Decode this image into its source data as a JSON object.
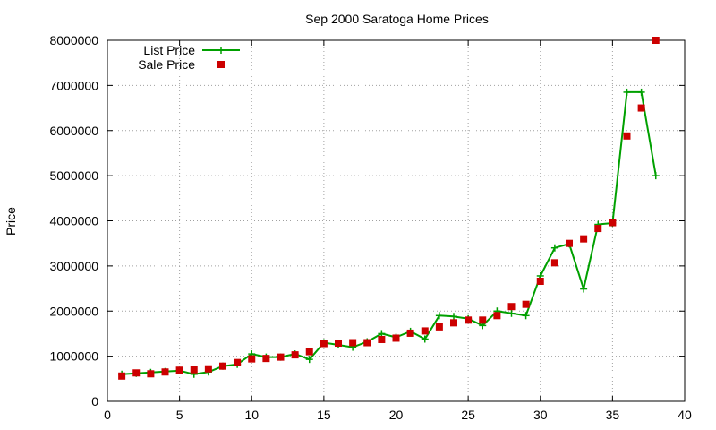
{
  "chart_data": {
    "type": "line",
    "title": "Sep 2000 Saratoga Home Prices",
    "xlabel": "",
    "ylabel": "Price",
    "xlim": [
      0,
      40
    ],
    "ylim": [
      0,
      8000000
    ],
    "xticks": [
      0,
      5,
      10,
      15,
      20,
      25,
      30,
      35,
      40
    ],
    "yticks": [
      0,
      1000000,
      2000000,
      3000000,
      4000000,
      5000000,
      6000000,
      7000000,
      8000000
    ],
    "grid": true,
    "legend_position": "top-left",
    "series": [
      {
        "name": "List Price",
        "style": "line-plus",
        "color": "#00a000",
        "x": [
          1,
          2,
          3,
          4,
          5,
          6,
          7,
          8,
          9,
          10,
          11,
          12,
          13,
          14,
          15,
          16,
          17,
          18,
          19,
          20,
          21,
          22,
          23,
          24,
          25,
          26,
          27,
          28,
          29,
          30,
          31,
          32,
          33,
          34,
          35,
          36,
          37,
          38
        ],
        "y": [
          600000,
          620000,
          640000,
          660000,
          680000,
          600000,
          650000,
          780000,
          820000,
          1050000,
          980000,
          980000,
          1050000,
          930000,
          1300000,
          1250000,
          1200000,
          1320000,
          1500000,
          1420000,
          1550000,
          1380000,
          1900000,
          1880000,
          1830000,
          1680000,
          2000000,
          1950000,
          1900000,
          2780000,
          3400000,
          3490000,
          2490000,
          3920000,
          3950000,
          6850000,
          6850000,
          5000000
        ]
      },
      {
        "name": "Sale Price",
        "style": "square",
        "color": "#cc0000",
        "x": [
          1,
          2,
          3,
          4,
          5,
          6,
          7,
          8,
          9,
          10,
          11,
          12,
          13,
          14,
          15,
          16,
          17,
          18,
          19,
          20,
          21,
          22,
          23,
          24,
          25,
          26,
          27,
          28,
          29,
          30,
          31,
          32,
          33,
          34,
          35,
          36,
          37,
          38
        ],
        "y": [
          560000,
          630000,
          610000,
          650000,
          690000,
          700000,
          720000,
          780000,
          860000,
          940000,
          950000,
          980000,
          1030000,
          1100000,
          1280000,
          1290000,
          1300000,
          1300000,
          1370000,
          1400000,
          1510000,
          1560000,
          1650000,
          1740000,
          1800000,
          1800000,
          1900000,
          2100000,
          2150000,
          2660000,
          3070000,
          3500000,
          3600000,
          3830000,
          3960000,
          5880000,
          6500000,
          8000000
        ]
      }
    ]
  }
}
